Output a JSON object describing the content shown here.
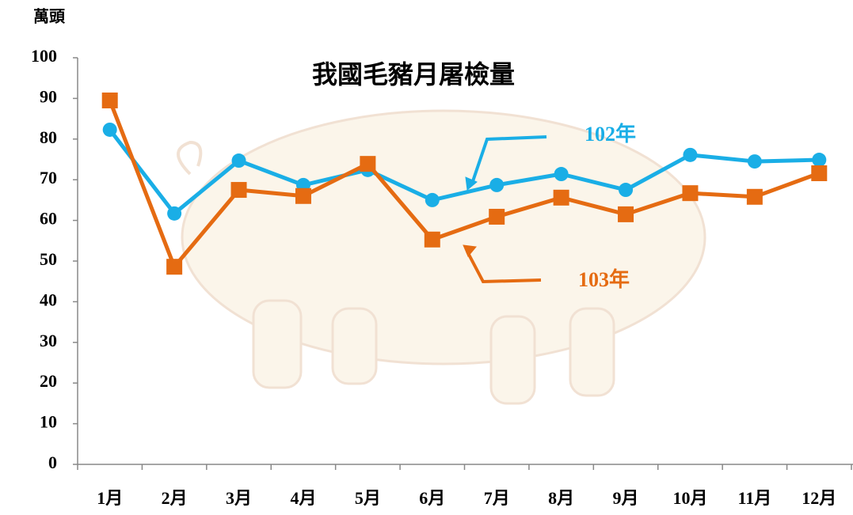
{
  "chart_data": {
    "type": "line",
    "title": "我國毛豬月屠檢量",
    "y_label": "萬頭",
    "categories": [
      "1月",
      "2月",
      "3月",
      "4月",
      "5月",
      "6月",
      "7月",
      "8月",
      "9月",
      "10月",
      "11月",
      "12月"
    ],
    "series": [
      {
        "name": "102年",
        "color": "#1aaee6",
        "marker": "circle",
        "values": [
          82.3,
          61.7,
          74.7,
          68.7,
          72.4,
          65,
          68.7,
          71.4,
          67.5,
          76.1,
          74.5,
          74.9
        ]
      },
      {
        "name": "103年",
        "color": "#e56b12",
        "marker": "square",
        "values": [
          89.5,
          48.6,
          67.5,
          66,
          73.9,
          55.3,
          60.9,
          65.6,
          61.5,
          66.7,
          65.8,
          71.6
        ]
      }
    ],
    "ylim": [
      0,
      100
    ],
    "yticks": [
      0,
      10,
      20,
      30,
      40,
      50,
      60,
      70,
      80,
      90,
      100
    ],
    "grid": false
  }
}
